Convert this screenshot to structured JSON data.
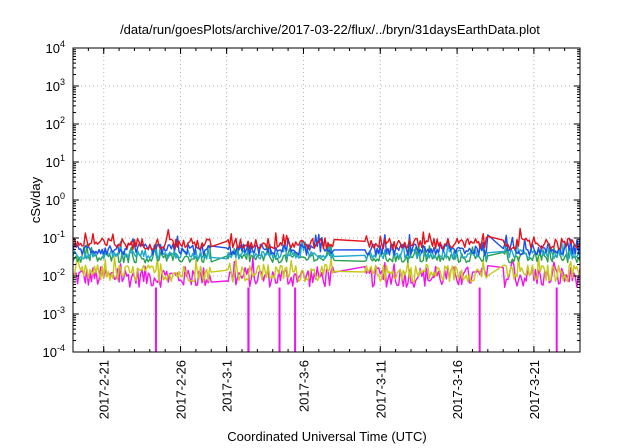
{
  "chart_data": {
    "type": "line",
    "title": "/data/run/goesPlots/archive/2017-03-22/flux/../bryn/31daysEarthData.plot",
    "xlabel": "Coordinated Universal Time (UTC)",
    "ylabel": "cSv/day",
    "y_scale": "log",
    "ylim": [
      0.0001,
      10000
    ],
    "xlim": [
      "2017-02-19",
      "2017-03-24"
    ],
    "grid": true,
    "legend": "none",
    "x_ticks": [
      "2017-2-21",
      "2017-2-26",
      "2017-3-1",
      "2017-3-6",
      "2017-3-11",
      "2017-3-16",
      "2017-3-21"
    ],
    "y_ticks": [
      {
        "value": 0.0001,
        "base": "10",
        "exp": "-4"
      },
      {
        "value": 0.001,
        "base": "10",
        "exp": "-3"
      },
      {
        "value": 0.01,
        "base": "10",
        "exp": "-2"
      },
      {
        "value": 0.1,
        "base": "10",
        "exp": "-1"
      },
      {
        "value": 1,
        "base": "10",
        "exp": "0"
      },
      {
        "value": 10,
        "base": "10",
        "exp": "1"
      },
      {
        "value": 100,
        "base": "10",
        "exp": "2"
      },
      {
        "value": 1000,
        "base": "10",
        "exp": "3"
      },
      {
        "value": 10000,
        "base": "10",
        "exp": "4"
      }
    ],
    "data_segments": [
      {
        "start": "2017-02-19",
        "end": "2017-02-28"
      },
      {
        "start": "2017-03-01",
        "end": "2017-03-08"
      },
      {
        "start": "2017-03-10",
        "end": "2017-03-18"
      },
      {
        "start": "2017-03-19",
        "end": "2017-03-24"
      }
    ],
    "series": [
      {
        "color": "#e8101a",
        "low": 0.05,
        "high": 0.1
      },
      {
        "color": "#1a4fe8",
        "low": 0.035,
        "high": 0.07
      },
      {
        "color": "#20a8d0",
        "low": 0.028,
        "high": 0.05
      },
      {
        "color": "#27a050",
        "low": 0.022,
        "high": 0.04
      },
      {
        "color": "#c8c816",
        "low": 0.007,
        "high": 0.02
      },
      {
        "color": "#f014e6",
        "low": 0.005,
        "high": 0.018
      }
    ],
    "dropouts": [
      {
        "date": "2017-02-24",
        "value": 0.0001
      },
      {
        "date": "2017-03-02",
        "value": 0.0001
      },
      {
        "date": "2017-03-02",
        "value": 0.0001
      },
      {
        "date": "2017-03-04",
        "value": 0.0001
      },
      {
        "date": "2017-03-05",
        "value": 0.0001
      },
      {
        "date": "2017-03-17",
        "value": 0.0001
      },
      {
        "date": "2017-03-22",
        "value": 0.0001
      }
    ]
  }
}
